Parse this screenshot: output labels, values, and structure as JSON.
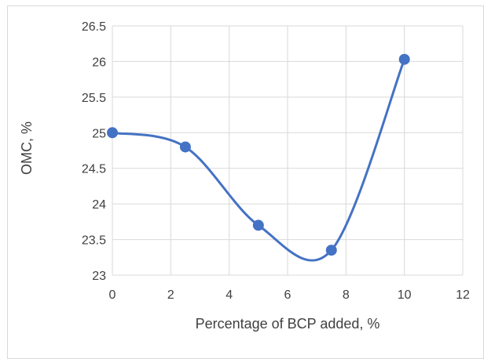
{
  "chart_data": {
    "type": "line",
    "title": "",
    "xlabel": "Percentage of BCP added, %",
    "ylabel": "OMC, %",
    "xlim": [
      0,
      12
    ],
    "ylim": [
      23,
      26.5
    ],
    "x_ticks": [
      "0",
      "2",
      "4",
      "6",
      "8",
      "10",
      "12"
    ],
    "y_ticks": [
      "23",
      "23.5",
      "24",
      "24.5",
      "25",
      "25.5",
      "26",
      "26.5"
    ],
    "grid": true,
    "legend": "none",
    "smooth": true,
    "series": [
      {
        "x": [
          0,
          2.5,
          5,
          7.5,
          10
        ],
        "y": [
          25.0,
          24.8,
          23.7,
          23.35,
          26.03
        ]
      }
    ],
    "colors": {
      "series": "#4472C4",
      "marker": "#4472C4",
      "grid": "#d9d9d9",
      "text": "#404040",
      "frame": "#d9d9d9"
    }
  }
}
